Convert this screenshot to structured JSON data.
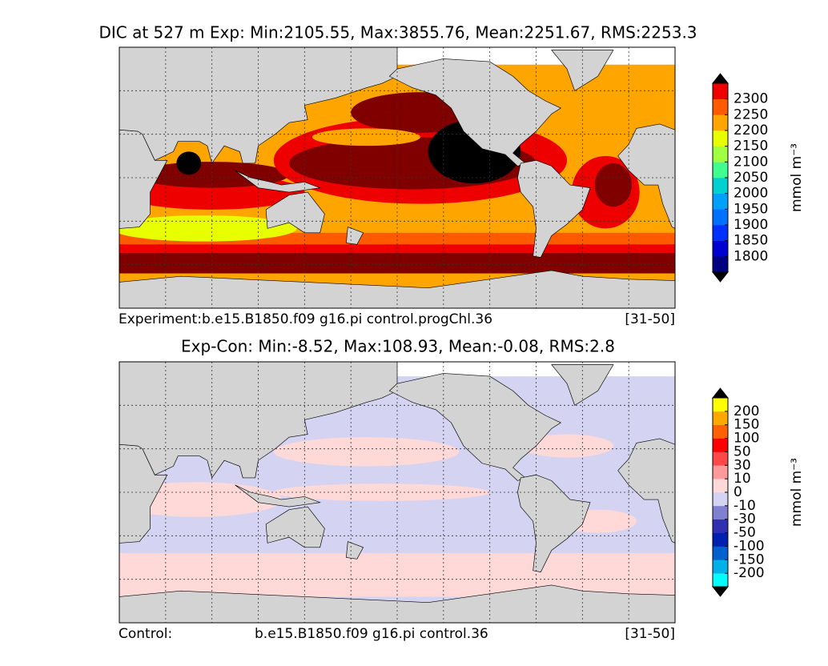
{
  "panels": [
    {
      "title": "DIC at 527 m Exp: Min:2105.55, Max:3855.76, Mean:2251.67, RMS:2253.3",
      "footer": [
        "Experiment:b.e15.B1850.f09 g16.pi control.progChl.36",
        "[31-50]"
      ],
      "colorbar": {
        "ticks": [
          1800,
          1850,
          1900,
          1950,
          2000,
          2050,
          2100,
          2150,
          2200,
          2250,
          2300
        ],
        "colors": [
          "#000080",
          "#0000d0",
          "#0030ff",
          "#0070ff",
          "#00a0ff",
          "#00d0d0",
          "#40ff90",
          "#a0ff40",
          "#e8ff00",
          "#ffa500",
          "#ff5a00",
          "#ee0000"
        ],
        "under_color": "#000000",
        "over_color": "#000000",
        "unit": "mmol m⁻³"
      }
    },
    {
      "title": "Exp-Con: Min:-8.52, Max:108.93, Mean:-0.08, RMS:2.8",
      "footer": [
        "Control:",
        "b.e15.B1850.f09 g16.pi control.36",
        "[31-50]"
      ],
      "colorbar": {
        "ticks": [
          -200,
          -150,
          -100,
          -50,
          -30,
          -10,
          0,
          10,
          30,
          50,
          100,
          150,
          200
        ],
        "colors": [
          "#00ffff",
          "#00b0e8",
          "#0060d0",
          "#0020b0",
          "#3030b0",
          "#8080d0",
          "#d4d4f2",
          "#ffd8d8",
          "#ff9a9a",
          "#ff4848",
          "#ff0000",
          "#ff6000",
          "#ffa800",
          "#ffff00"
        ],
        "under_color": "#000000",
        "over_color": "#000000",
        "unit": "mmol m⁻³"
      }
    }
  ]
}
